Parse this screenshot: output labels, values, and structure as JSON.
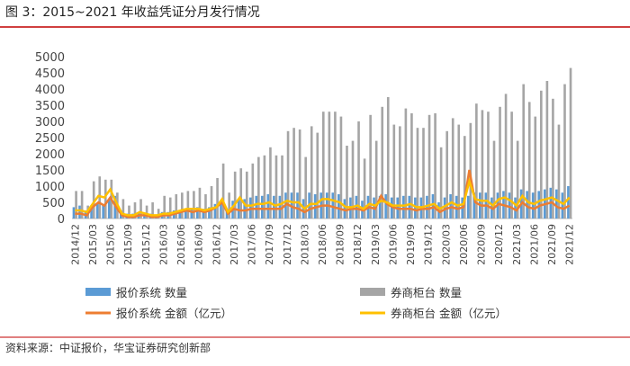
{
  "chart_data": {
    "type": "bar_line",
    "title": "图 3：2015~2021 年收益凭证分月发行情况",
    "source": "资料来源：中证报价，华宝证券研究创新部",
    "categories": [
      "2014/12",
      null,
      null,
      "2015/03",
      null,
      null,
      "2015/06",
      null,
      null,
      "2015/09",
      null,
      null,
      "2015/12",
      null,
      null,
      "2016/03",
      null,
      null,
      "2016/06",
      null,
      null,
      "2016/09",
      null,
      null,
      "2016/12",
      null,
      null,
      "2017/03",
      null,
      null,
      "2017/06",
      null,
      null,
      "2017/09",
      null,
      null,
      "2017/12",
      null,
      null,
      "2018/03",
      null,
      null,
      "2018/06",
      null,
      null,
      "2018/09",
      null,
      null,
      "2018/12",
      null,
      null,
      "2019/03",
      null,
      null,
      "2019/06",
      null,
      null,
      "2019/09",
      null,
      null,
      "2019/12",
      null,
      null,
      "2020/03",
      null,
      null,
      "2020/06",
      null,
      null,
      "2020/09",
      null,
      null,
      "2020/12",
      null,
      null,
      "2021/03",
      null,
      null,
      "2021/06",
      null,
      null,
      "2021/09",
      null,
      null,
      "2021/12"
    ],
    "ylim": [
      0,
      5000
    ],
    "yticks": [
      0,
      500,
      1000,
      1500,
      2000,
      2500,
      3000,
      3500,
      4000,
      4500,
      5000
    ],
    "grid": false,
    "series": [
      {
        "name": "报价系统 数量",
        "kind": "bar",
        "color": "#5b9bd5",
        "values": [
          350,
          400,
          250,
          400,
          450,
          450,
          600,
          700,
          250,
          150,
          150,
          200,
          150,
          150,
          100,
          200,
          200,
          250,
          250,
          300,
          300,
          350,
          300,
          350,
          450,
          550,
          300,
          550,
          600,
          600,
          650,
          700,
          700,
          750,
          700,
          700,
          800,
          800,
          800,
          600,
          800,
          750,
          800,
          800,
          800,
          750,
          600,
          650,
          700,
          550,
          700,
          650,
          700,
          750,
          650,
          650,
          700,
          700,
          650,
          650,
          700,
          750,
          500,
          650,
          750,
          700,
          650,
          700,
          800,
          800,
          800,
          650,
          800,
          850,
          800,
          650,
          900,
          850,
          800,
          850,
          900,
          950,
          900,
          800,
          1000
        ]
      },
      {
        "name": "券商柜台 数量",
        "kind": "bar",
        "color": "#a5a5a5",
        "values": [
          850,
          850,
          400,
          1150,
          1300,
          1200,
          1200,
          800,
          600,
          400,
          500,
          600,
          400,
          500,
          300,
          700,
          650,
          750,
          800,
          850,
          850,
          950,
          750,
          1000,
          1250,
          1700,
          800,
          1450,
          1550,
          1450,
          1700,
          1900,
          1950,
          2200,
          1950,
          1950,
          2700,
          2800,
          2750,
          1900,
          2850,
          2650,
          3300,
          3300,
          3300,
          3150,
          2250,
          2400,
          3000,
          1850,
          3200,
          2400,
          3450,
          3750,
          2900,
          2850,
          3400,
          3250,
          2800,
          2800,
          3200,
          3250,
          2200,
          2700,
          3100,
          2900,
          2550,
          2950,
          3550,
          3350,
          3300,
          2400,
          3450,
          3850,
          3300,
          2400,
          4150,
          3600,
          3150,
          3950,
          4250,
          3700,
          2900,
          4150,
          4650
        ]
      },
      {
        "name": "报价系统 金额（亿元）",
        "kind": "line",
        "color": "#ed7d31",
        "values": [
          150,
          150,
          100,
          350,
          500,
          400,
          650,
          350,
          100,
          50,
          50,
          100,
          100,
          50,
          50,
          100,
          100,
          150,
          200,
          250,
          200,
          250,
          200,
          250,
          350,
          500,
          150,
          300,
          250,
          250,
          300,
          300,
          300,
          300,
          300,
          300,
          450,
          350,
          300,
          200,
          300,
          350,
          400,
          400,
          350,
          300,
          250,
          300,
          300,
          250,
          350,
          300,
          700,
          450,
          350,
          300,
          300,
          300,
          250,
          300,
          300,
          350,
          200,
          300,
          350,
          300,
          350,
          1500,
          500,
          400,
          400,
          300,
          450,
          400,
          350,
          250,
          500,
          350,
          300,
          400,
          450,
          500,
          350,
          300,
          400
        ]
      },
      {
        "name": "券商柜台 金额（亿元）",
        "kind": "line",
        "color": "#ffc000",
        "values": [
          250,
          250,
          200,
          450,
          700,
          650,
          900,
          500,
          150,
          100,
          100,
          200,
          150,
          100,
          100,
          150,
          150,
          200,
          250,
          300,
          300,
          300,
          250,
          300,
          350,
          600,
          200,
          400,
          650,
          400,
          400,
          450,
          450,
          500,
          400,
          450,
          550,
          500,
          500,
          300,
          450,
          450,
          600,
          600,
          550,
          500,
          350,
          350,
          400,
          300,
          450,
          400,
          550,
          500,
          400,
          400,
          400,
          450,
          350,
          350,
          400,
          450,
          300,
          400,
          500,
          400,
          450,
          1150,
          600,
          550,
          550,
          400,
          600,
          650,
          550,
          400,
          700,
          500,
          450,
          550,
          600,
          650,
          550,
          450,
          650
        ]
      }
    ]
  }
}
